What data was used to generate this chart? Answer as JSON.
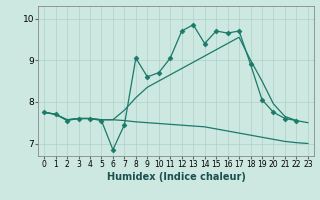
{
  "xlabel": "Humidex (Indice chaleur)",
  "ylabel": "",
  "xlim": [
    -0.5,
    23.5
  ],
  "ylim": [
    6.7,
    10.3
  ],
  "yticks": [
    7,
    8,
    9,
    10
  ],
  "xticks": [
    0,
    1,
    2,
    3,
    4,
    5,
    6,
    7,
    8,
    9,
    10,
    11,
    12,
    13,
    14,
    15,
    16,
    17,
    18,
    19,
    20,
    21,
    22,
    23
  ],
  "bg_color": "#cde8e0",
  "line_color": "#1a7a6a",
  "grid_color": "#afd0c8",
  "lines": [
    {
      "x": [
        0,
        1,
        2,
        3,
        4,
        5,
        6,
        7,
        8,
        9,
        10,
        11,
        12,
        13,
        14,
        15,
        16,
        17,
        18,
        19,
        20,
        21,
        22
      ],
      "y": [
        7.75,
        7.7,
        7.55,
        7.6,
        7.6,
        7.55,
        6.85,
        7.45,
        9.05,
        8.6,
        8.7,
        9.05,
        9.7,
        9.85,
        9.4,
        9.7,
        9.65,
        9.7,
        8.9,
        8.05,
        7.75,
        7.6,
        7.55
      ],
      "marker": "D",
      "markersize": 2.5
    },
    {
      "x": [
        0,
        1,
        2,
        3,
        4,
        5,
        6,
        7,
        8,
        9,
        10,
        11,
        12,
        13,
        14,
        15,
        16,
        17,
        18,
        19,
        20,
        21,
        22,
        23
      ],
      "y": [
        7.75,
        7.7,
        7.57,
        7.6,
        7.6,
        7.57,
        7.57,
        7.8,
        8.1,
        8.35,
        8.5,
        8.65,
        8.8,
        8.95,
        9.1,
        9.25,
        9.4,
        9.55,
        9.0,
        8.5,
        7.95,
        7.65,
        7.55,
        7.5
      ],
      "marker": null,
      "markersize": 0
    },
    {
      "x": [
        0,
        1,
        2,
        3,
        4,
        5,
        6,
        7,
        8,
        9,
        10,
        11,
        12,
        13,
        14,
        15,
        16,
        17,
        18,
        19,
        20,
        21,
        22,
        23
      ],
      "y": [
        7.75,
        7.7,
        7.57,
        7.6,
        7.6,
        7.57,
        7.57,
        7.55,
        7.52,
        7.5,
        7.48,
        7.46,
        7.44,
        7.42,
        7.4,
        7.35,
        7.3,
        7.25,
        7.2,
        7.15,
        7.1,
        7.05,
        7.02,
        7.0
      ],
      "marker": null,
      "markersize": 0
    }
  ]
}
